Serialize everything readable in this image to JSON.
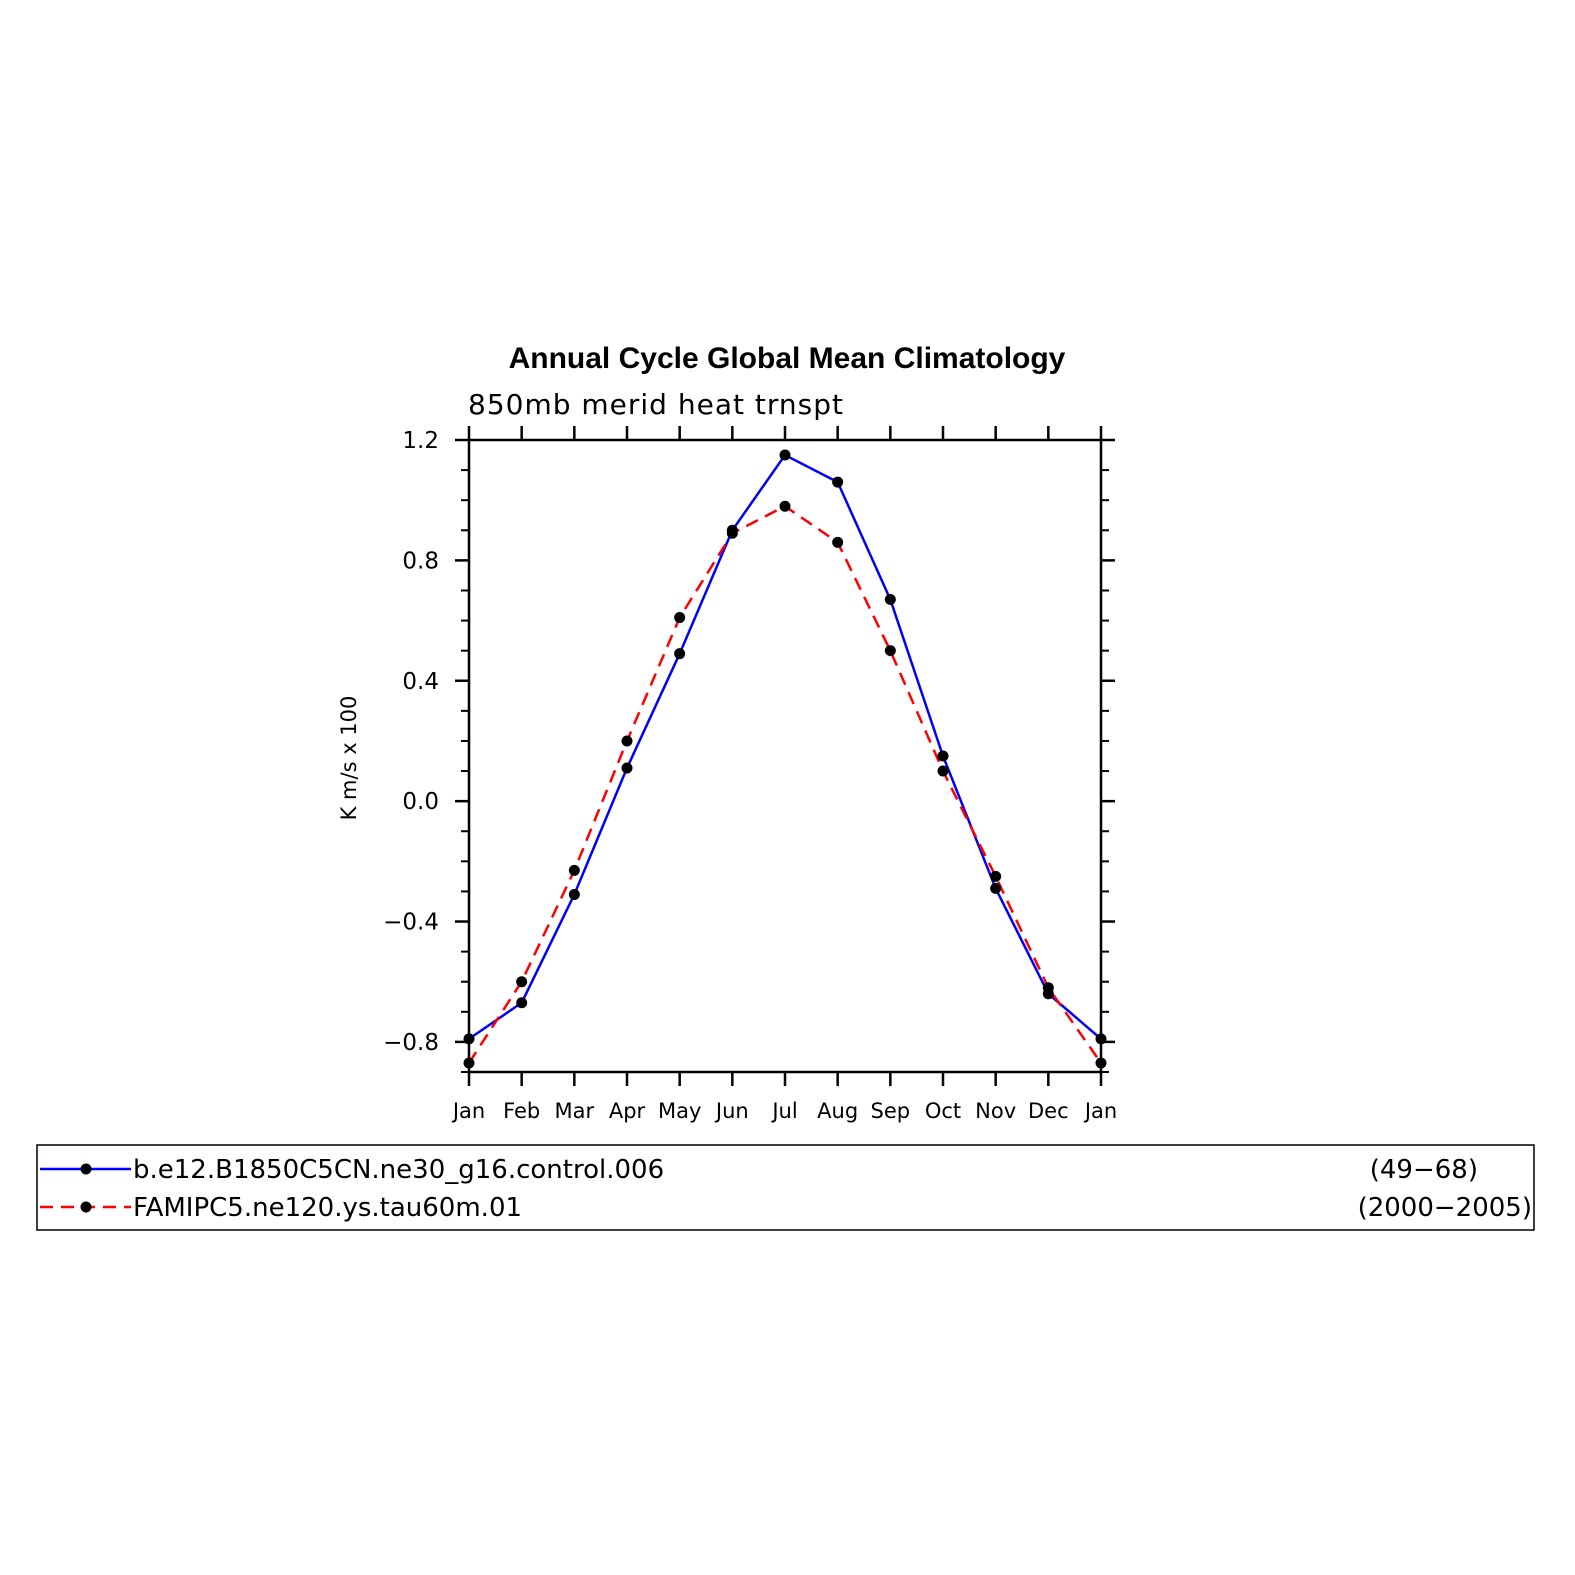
{
  "chart_data": {
    "type": "line",
    "title": "Annual Cycle Global Mean Climatology",
    "subtitle": "850mb merid heat trnspt",
    "xlabel": "",
    "ylabel": "K m/s x 100",
    "categories": [
      "Jan",
      "Feb",
      "Mar",
      "Apr",
      "May",
      "Jun",
      "Jul",
      "Aug",
      "Sep",
      "Oct",
      "Nov",
      "Dec",
      "Jan"
    ],
    "ylim": [
      -0.9,
      1.2
    ],
    "yticks": [
      -0.8,
      -0.4,
      0.0,
      0.4,
      0.8,
      1.2
    ],
    "ytick_labels": [
      "−0.8",
      "−0.4",
      "0.0",
      "0.4",
      "0.8",
      "1.2"
    ],
    "grid": false,
    "legend_position": "bottom",
    "series": [
      {
        "name": "b.e12.B1850C5CN.ne30_g16.control.006",
        "years": "(49−68)",
        "color": "#0000ff",
        "line_style": "solid",
        "marker": "filled-circle",
        "values": [
          -0.79,
          -0.67,
          -0.31,
          0.11,
          0.49,
          0.9,
          1.15,
          1.06,
          0.67,
          0.15,
          -0.29,
          -0.64,
          -0.79
        ]
      },
      {
        "name": "FAMIPC5.ne120.ys.tau60m.01",
        "years": "(2000−2005)",
        "color": "#ff0000",
        "line_style": "dashed",
        "marker": "filled-circle",
        "values": [
          -0.87,
          -0.6,
          -0.23,
          0.2,
          0.61,
          0.89,
          0.98,
          0.86,
          0.5,
          0.1,
          -0.25,
          -0.62,
          -0.87
        ]
      }
    ]
  }
}
